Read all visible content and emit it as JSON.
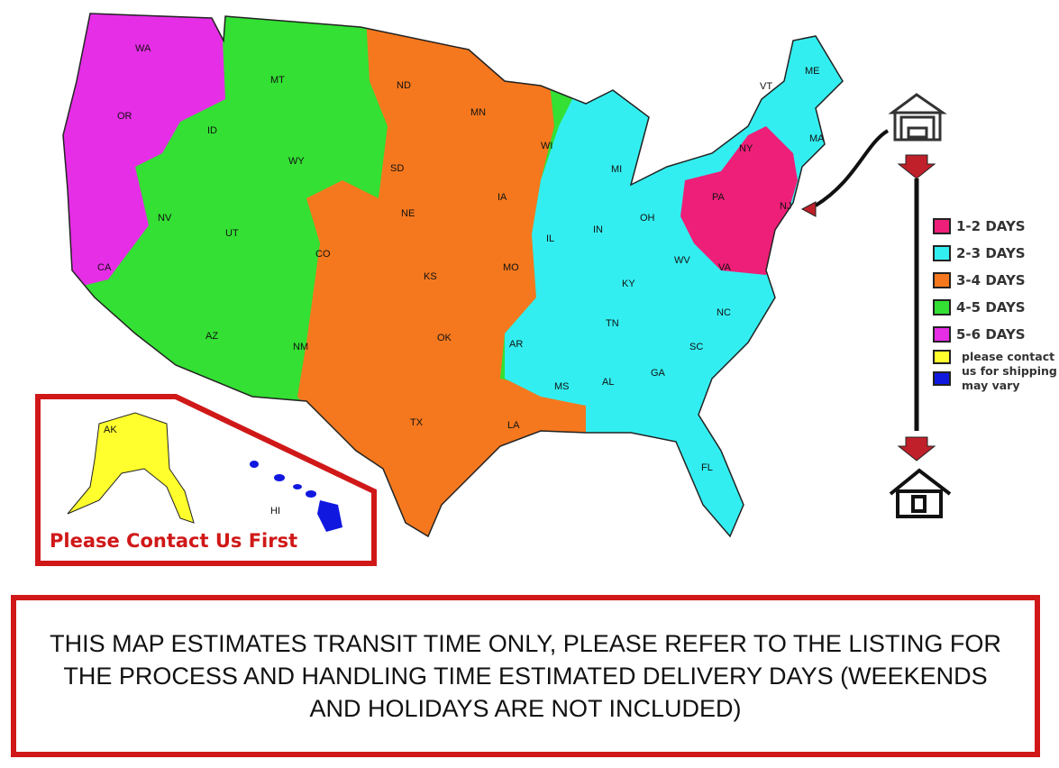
{
  "map": {
    "zone_colors": {
      "1-2": "#ee1f78",
      "2-3": "#33eef0",
      "3-4": "#f5781e",
      "4-5": "#33e033",
      "5-6": "#e62ee6",
      "contact": "#ffff2e",
      "vary": "#1018e0"
    },
    "states": [
      "WA",
      "OR",
      "CA",
      "NV",
      "ID",
      "MT",
      "WY",
      "UT",
      "AZ",
      "CO",
      "NM",
      "ND",
      "SD",
      "NE",
      "KS",
      "OK",
      "TX",
      "MN",
      "IA",
      "MO",
      "AR",
      "LA",
      "WI",
      "IL",
      "MI",
      "IN",
      "OH",
      "KY",
      "TN",
      "MS",
      "AL",
      "GA",
      "FL",
      "SC",
      "NC",
      "VA",
      "WV",
      "PA",
      "NY",
      "VT",
      "ME",
      "MA",
      "NJ"
    ],
    "inset_states": [
      "AK",
      "HI"
    ],
    "inset_note": "Please Contact Us First",
    "origin_icon": "warehouse-icon",
    "destination_icon": "house-icon"
  },
  "legend": {
    "items": [
      {
        "label": "1-2 DAYS",
        "color": "#ee1f78"
      },
      {
        "label": "2-3 DAYS",
        "color": "#33eef0"
      },
      {
        "label": "3-4 DAYS",
        "color": "#f5781e"
      },
      {
        "label": "4-5 DAYS",
        "color": "#33e033"
      },
      {
        "label": "5-6 DAYS",
        "color": "#e62ee6"
      }
    ],
    "contact_colors": [
      "#ffff2e",
      "#1018e0"
    ],
    "contact_text": [
      "please contact",
      "us for shipping",
      "may vary"
    ]
  },
  "footer": {
    "text": "THIS MAP ESTIMATES TRANSIT TIME ONLY, PLEASE REFER TO THE LISTING FOR THE PROCESS AND HANDLING TIME ESTIMATED DELIVERY DAYS (WEEKENDS AND HOLIDAYS ARE NOT INCLUDED)"
  }
}
